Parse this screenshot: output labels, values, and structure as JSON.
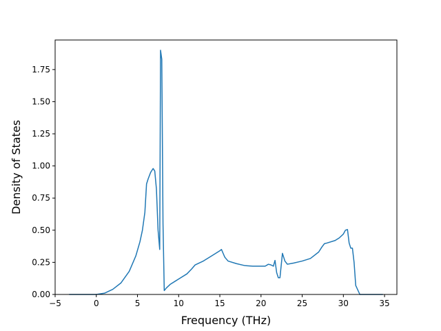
{
  "chart_data": {
    "type": "line",
    "title": "",
    "xlabel": "Frequency (THz)",
    "ylabel": "Density of States",
    "xlim": [
      -5,
      36.5
    ],
    "ylim": [
      0,
      1.98
    ],
    "xticks": [
      -5,
      0,
      5,
      10,
      15,
      20,
      25,
      30,
      35
    ],
    "xtick_labels": [
      "−5",
      "0",
      "5",
      "10",
      "15",
      "20",
      "25",
      "30",
      "35"
    ],
    "yticks": [
      0,
      0.25,
      0.5,
      0.75,
      1.0,
      1.25,
      1.5,
      1.75
    ],
    "ytick_labels": [
      "0.00",
      "0.25",
      "0.50",
      "0.75",
      "1.00",
      "1.25",
      "1.50",
      "1.75"
    ],
    "grid": false,
    "legend": "none",
    "colors": {
      "line": "#1f77b4",
      "axes": "#000000"
    },
    "series": [
      {
        "x": [
          -3.3,
          0,
          1,
          2,
          3,
          4,
          4.8,
          5.3,
          5.6,
          5.9,
          6.1,
          6.3,
          6.6,
          6.9,
          7.1,
          7.3,
          7.5,
          7.7,
          7.8,
          7.95,
          8.1,
          8.25,
          8.5,
          9.0,
          10.0,
          11.0,
          11.6,
          12.0,
          13.0,
          14.0,
          15.0,
          15.2,
          15.4,
          15.6,
          16.0,
          17.0,
          18.0,
          19.0,
          20.0,
          20.5,
          20.9,
          21.2,
          21.5,
          21.7,
          21.9,
          22.1,
          22.3,
          22.6,
          22.9,
          23.2,
          24.0,
          25.0,
          26.0,
          27.0,
          27.4,
          27.7,
          28.0,
          29.0,
          29.5,
          30.0,
          30.25,
          30.5,
          30.7,
          30.9,
          31.1,
          31.3,
          31.5,
          32.0,
          34.8
        ],
        "y": [
          0,
          0.0,
          0.01,
          0.04,
          0.09,
          0.18,
          0.3,
          0.41,
          0.5,
          0.64,
          0.86,
          0.9,
          0.95,
          0.98,
          0.96,
          0.82,
          0.5,
          0.35,
          1.9,
          1.83,
          0.55,
          0.03,
          0.05,
          0.08,
          0.12,
          0.16,
          0.2,
          0.23,
          0.26,
          0.3,
          0.34,
          0.35,
          0.32,
          0.29,
          0.26,
          0.24,
          0.225,
          0.22,
          0.22,
          0.22,
          0.235,
          0.23,
          0.22,
          0.265,
          0.17,
          0.13,
          0.13,
          0.32,
          0.26,
          0.235,
          0.245,
          0.26,
          0.28,
          0.33,
          0.37,
          0.395,
          0.4,
          0.42,
          0.44,
          0.47,
          0.5,
          0.505,
          0.4,
          0.36,
          0.36,
          0.25,
          0.07,
          0.0,
          0.0
        ]
      }
    ]
  }
}
